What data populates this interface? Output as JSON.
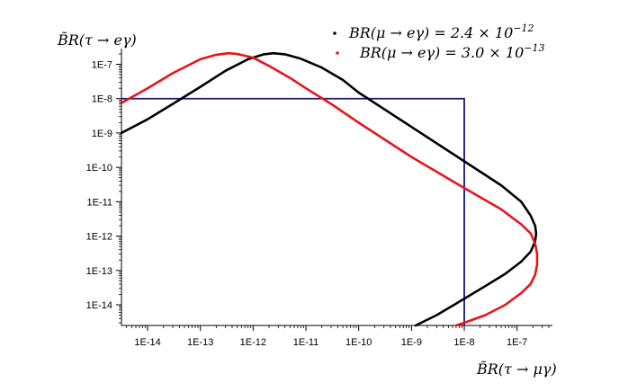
{
  "chart_data": {
    "type": "line",
    "title": "",
    "xlabel": "B̃R(τ → μγ)",
    "ylabel": "B̃R(τ → eγ)",
    "x_scale": "log",
    "y_scale": "log",
    "x_ticks": [
      {
        "value": 1e-14,
        "label": "1E-14"
      },
      {
        "value": 1e-13,
        "label": "1E-13"
      },
      {
        "value": 1e-12,
        "label": "1E-12"
      },
      {
        "value": 1e-11,
        "label": "1E-11"
      },
      {
        "value": 1e-10,
        "label": "1E-10"
      },
      {
        "value": 1e-09,
        "label": "1E-9"
      },
      {
        "value": 1e-08,
        "label": "1E-8"
      },
      {
        "value": 1e-07,
        "label": "1E-7"
      }
    ],
    "y_ticks": [
      {
        "value": 1e-07,
        "label": "1E-7"
      },
      {
        "value": 1e-08,
        "label": "1E-8"
      },
      {
        "value": 1e-09,
        "label": "1E-9"
      },
      {
        "value": 1e-10,
        "label": "1E-10"
      },
      {
        "value": 1e-11,
        "label": "1E-11"
      },
      {
        "value": 1e-12,
        "label": "1E-12"
      },
      {
        "value": 1e-13,
        "label": "1E-13"
      },
      {
        "value": 1e-14,
        "label": "1E-14"
      }
    ],
    "xlim": [
      3.2e-15,
      4e-07
    ],
    "ylim": [
      2.5e-15,
      2e-07
    ],
    "grid": false,
    "legend_position": "top-right",
    "series": [
      {
        "name": "BR(μ → eγ) = 2.4 × 10^-12",
        "legend_main": "BR(μ → eγ) = 2.4 × 10",
        "legend_exp": "−12",
        "color": "#000000",
        "x": [
          3.2e-15,
          1e-14,
          3e-14,
          1e-13,
          3e-13,
          8e-13,
          1.6e-12,
          2.4e-12,
          4e-12,
          8e-12,
          2e-11,
          5e-11,
          1e-10,
          3e-10,
          1e-09,
          1e-08,
          5e-08,
          1.2e-07,
          1.8e-07,
          2.2e-07,
          2.3e-07,
          2.2e-07,
          1.8e-07,
          1.2e-07,
          6e-08,
          2.5e-08,
          1e-08,
          3e-09,
          1.2e-09
        ],
        "y": [
          1e-09,
          2.5e-09,
          7e-09,
          2.2e-08,
          6.5e-08,
          1.4e-07,
          1.95e-07,
          2.1e-07,
          1.95e-07,
          1.45e-07,
          8e-08,
          3.5e-08,
          1.5e-08,
          5e-09,
          1.5e-09,
          1.5e-10,
          3e-11,
          1e-11,
          4e-12,
          2e-12,
          1.2e-12,
          7e-13,
          3.5e-13,
          1.8e-13,
          8e-14,
          3.5e-14,
          1.5e-14,
          5e-15,
          2.5e-15
        ]
      },
      {
        "name": "BR(μ → eγ) = 3.0 × 10^-13",
        "legend_main": "BR(μ → eγ) = 3.0 × 10",
        "legend_exp": "−13",
        "color": "#e8141c",
        "x": [
          3.2e-15,
          1e-14,
          3e-14,
          1e-13,
          2e-13,
          3.4e-13,
          5e-13,
          1e-12,
          2e-12,
          5e-12,
          1e-11,
          3e-11,
          1e-10,
          1e-09,
          1e-08,
          5e-08,
          1.2e-07,
          1.8e-07,
          2.2e-07,
          2.4e-07,
          2.4e-07,
          2.2e-07,
          1.8e-07,
          1.2e-07,
          6e-08,
          2.5e-08,
          1e-08,
          7e-09
        ],
        "y": [
          7.5e-09,
          2e-08,
          5.5e-08,
          1.4e-07,
          1.9e-07,
          2.1e-07,
          2e-07,
          1.55e-07,
          9e-08,
          4e-08,
          2e-08,
          7e-09,
          2e-09,
          2e-10,
          2.5e-11,
          6e-12,
          2.2e-12,
          1.2e-12,
          6e-13,
          3e-13,
          1.5e-13,
          7.5e-14,
          4e-14,
          2.2e-14,
          1e-14,
          5e-15,
          3e-15,
          2.5e-15
        ]
      }
    ],
    "annotations": [
      {
        "type": "limit-box",
        "color": "#1a1a7a",
        "x_max": 1e-08,
        "y_max": 1e-08
      }
    ]
  }
}
